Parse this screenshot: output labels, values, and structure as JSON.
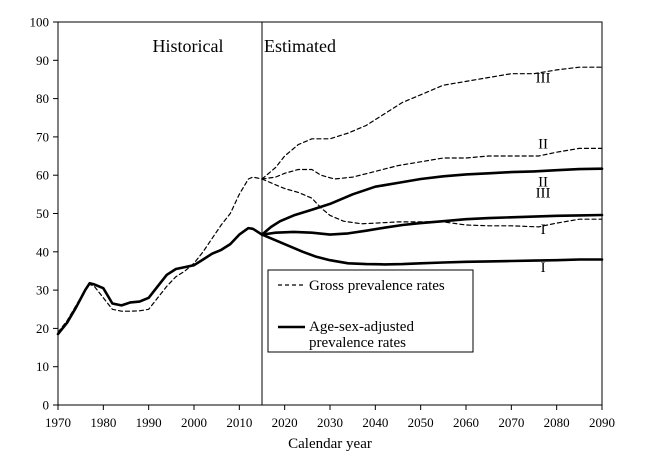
{
  "chart_data": {
    "type": "line",
    "xlabel": "Calendar year",
    "ylabel": "",
    "xlim": [
      1970,
      2090
    ],
    "ylim": [
      0,
      100
    ],
    "xticks": [
      1970,
      1980,
      1990,
      2000,
      2010,
      2020,
      2030,
      2040,
      2050,
      2060,
      2070,
      2080,
      2090
    ],
    "yticks": [
      0,
      10,
      20,
      30,
      40,
      50,
      60,
      70,
      80,
      90,
      100
    ],
    "grid": false,
    "divider_year": 2015,
    "regions": {
      "historical": "Historical",
      "estimated": "Estimated"
    },
    "legend": {
      "position": "center",
      "gross": "Gross prevalence rates",
      "adjusted_line1": "Age-sex-adjusted",
      "adjusted_line2": "prevalence rates"
    },
    "series": [
      {
        "name": "Gross prevalence rates",
        "style": "dashed",
        "points": [
          [
            1970,
            19
          ],
          [
            1972,
            22
          ],
          [
            1974,
            26
          ],
          [
            1976,
            30
          ],
          [
            1977,
            31.5
          ],
          [
            1978,
            31
          ],
          [
            1980,
            28
          ],
          [
            1982,
            25
          ],
          [
            1984,
            24.5
          ],
          [
            1986,
            24.5
          ],
          [
            1988,
            24.6
          ],
          [
            1990,
            25
          ],
          [
            1992,
            28
          ],
          [
            1994,
            31
          ],
          [
            1996,
            33.5
          ],
          [
            1998,
            35
          ],
          [
            2000,
            37
          ],
          [
            2002,
            40
          ],
          [
            2004,
            43.5
          ],
          [
            2006,
            47
          ],
          [
            2008,
            50
          ],
          [
            2010,
            55
          ],
          [
            2012,
            59
          ],
          [
            2013,
            59.5
          ],
          [
            2015,
            59
          ]
        ]
      },
      {
        "name": "III",
        "style": "dashed",
        "points": [
          [
            2015,
            59
          ],
          [
            2018,
            62
          ],
          [
            2020,
            65
          ],
          [
            2023,
            68
          ],
          [
            2026,
            69.5
          ],
          [
            2030,
            69.5
          ],
          [
            2034,
            71
          ],
          [
            2038,
            73
          ],
          [
            2042,
            76
          ],
          [
            2046,
            79
          ],
          [
            2050,
            81
          ],
          [
            2055,
            83.5
          ],
          [
            2060,
            84.5
          ],
          [
            2065,
            85.5
          ],
          [
            2070,
            86.5
          ],
          [
            2075,
            86.5
          ],
          [
            2080,
            87.5
          ],
          [
            2085,
            88.2
          ],
          [
            2090,
            88.2
          ]
        ]
      },
      {
        "name": "II",
        "style": "dashed",
        "points": [
          [
            2015,
            59
          ],
          [
            2018,
            59.5
          ],
          [
            2020,
            60.5
          ],
          [
            2023,
            61.5
          ],
          [
            2026,
            61.5
          ],
          [
            2028,
            60
          ],
          [
            2031,
            59
          ],
          [
            2035,
            59.5
          ],
          [
            2040,
            61
          ],
          [
            2045,
            62.5
          ],
          [
            2050,
            63.5
          ],
          [
            2055,
            64.5
          ],
          [
            2060,
            64.5
          ],
          [
            2065,
            65
          ],
          [
            2070,
            65
          ],
          [
            2076,
            65
          ],
          [
            2080,
            66
          ],
          [
            2085,
            67
          ],
          [
            2090,
            67
          ]
        ]
      },
      {
        "name": "I",
        "style": "dashed",
        "points": [
          [
            2015,
            59
          ],
          [
            2018,
            57.5
          ],
          [
            2020,
            56.5
          ],
          [
            2023,
            55.5
          ],
          [
            2026,
            54
          ],
          [
            2028,
            51.5
          ],
          [
            2030,
            49.5
          ],
          [
            2033,
            48
          ],
          [
            2037,
            47.3
          ],
          [
            2040,
            47.5
          ],
          [
            2045,
            47.8
          ],
          [
            2050,
            47.8
          ],
          [
            2055,
            47.8
          ],
          [
            2060,
            47
          ],
          [
            2065,
            46.8
          ],
          [
            2070,
            46.8
          ],
          [
            2076,
            46.5
          ],
          [
            2080,
            47.5
          ],
          [
            2085,
            48.5
          ],
          [
            2090,
            48.5
          ]
        ]
      },
      {
        "name": "Age-sex-adjusted prevalence rates",
        "style": "solid",
        "points": [
          [
            1970,
            18.5
          ],
          [
            1972,
            21.5
          ],
          [
            1974,
            25.5
          ],
          [
            1976,
            30
          ],
          [
            1977,
            31.8
          ],
          [
            1978,
            31.5
          ],
          [
            1980,
            30.5
          ],
          [
            1982,
            26.5
          ],
          [
            1984,
            26
          ],
          [
            1986,
            26.8
          ],
          [
            1988,
            27
          ],
          [
            1990,
            28
          ],
          [
            1992,
            31
          ],
          [
            1994,
            34
          ],
          [
            1996,
            35.5
          ],
          [
            1998,
            36
          ],
          [
            2000,
            36.5
          ],
          [
            2002,
            38
          ],
          [
            2004,
            39.5
          ],
          [
            2006,
            40.5
          ],
          [
            2008,
            42
          ],
          [
            2010,
            44.5
          ],
          [
            2012,
            46.2
          ],
          [
            2013,
            46
          ],
          [
            2015,
            44.5
          ]
        ]
      },
      {
        "name": "III",
        "style": "solid",
        "points": [
          [
            2015,
            44.5
          ],
          [
            2017,
            46.5
          ],
          [
            2019,
            48
          ],
          [
            2022,
            49.5
          ],
          [
            2026,
            51
          ],
          [
            2030,
            52.5
          ],
          [
            2035,
            55
          ],
          [
            2040,
            57
          ],
          [
            2045,
            58
          ],
          [
            2050,
            59
          ],
          [
            2055,
            59.7
          ],
          [
            2060,
            60.2
          ],
          [
            2065,
            60.5
          ],
          [
            2070,
            60.8
          ],
          [
            2075,
            61
          ],
          [
            2080,
            61.3
          ],
          [
            2085,
            61.6
          ],
          [
            2090,
            61.7
          ]
        ]
      },
      {
        "name": "II",
        "style": "solid",
        "points": [
          [
            2015,
            44.5
          ],
          [
            2018,
            45
          ],
          [
            2022,
            45.2
          ],
          [
            2026,
            45
          ],
          [
            2030,
            44.5
          ],
          [
            2034,
            44.8
          ],
          [
            2038,
            45.5
          ],
          [
            2042,
            46.3
          ],
          [
            2046,
            47
          ],
          [
            2050,
            47.5
          ],
          [
            2055,
            48
          ],
          [
            2060,
            48.5
          ],
          [
            2065,
            48.8
          ],
          [
            2070,
            49
          ],
          [
            2075,
            49.2
          ],
          [
            2080,
            49.4
          ],
          [
            2085,
            49.5
          ],
          [
            2090,
            49.6
          ]
        ]
      },
      {
        "name": "I",
        "style": "solid",
        "points": [
          [
            2015,
            44.5
          ],
          [
            2018,
            43
          ],
          [
            2021,
            41.5
          ],
          [
            2024,
            40
          ],
          [
            2027,
            38.7
          ],
          [
            2030,
            37.8
          ],
          [
            2034,
            37
          ],
          [
            2038,
            36.8
          ],
          [
            2042,
            36.7
          ],
          [
            2046,
            36.8
          ],
          [
            2050,
            37
          ],
          [
            2055,
            37.2
          ],
          [
            2060,
            37.4
          ],
          [
            2065,
            37.5
          ],
          [
            2070,
            37.6
          ],
          [
            2075,
            37.7
          ],
          [
            2080,
            37.8
          ],
          [
            2085,
            38
          ],
          [
            2090,
            38
          ]
        ]
      }
    ],
    "series_labels": [
      {
        "text": "III",
        "x": 2077,
        "y": 85.5
      },
      {
        "text": "II",
        "x": 2077,
        "y": 68.3
      },
      {
        "text": "III",
        "x": 2077,
        "y": 55.5
      },
      {
        "text": "II",
        "x": 2077,
        "y": 58.3
      },
      {
        "text": "I",
        "x": 2077,
        "y": 46
      },
      {
        "text": "I",
        "x": 2077,
        "y": 36
      }
    ]
  }
}
